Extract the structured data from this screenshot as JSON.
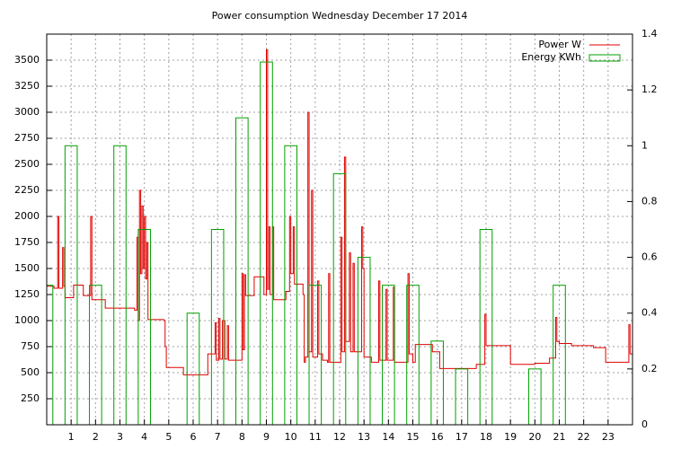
{
  "chart_data": {
    "type": "step-line-bar",
    "title": "Power consumption Wednesday December 17 2014",
    "grid": true,
    "legend": "upper right",
    "xlim": [
      0,
      24
    ],
    "xticks": [
      1,
      2,
      3,
      4,
      5,
      6,
      7,
      8,
      9,
      10,
      11,
      12,
      13,
      14,
      15,
      16,
      17,
      18,
      19,
      20,
      21,
      22,
      23
    ],
    "ylim": [
      0,
      3750
    ],
    "yticks": [
      250,
      500,
      750,
      1000,
      1250,
      1500,
      1750,
      2000,
      2250,
      2500,
      2750,
      3000,
      3250,
      3500
    ],
    "y2lim": [
      0,
      1.4
    ],
    "y2ticks": [
      0,
      0.2,
      0.4,
      0.6,
      0.8,
      1,
      1.2,
      1.4
    ],
    "series": [
      {
        "name": "Power W",
        "color": "#e00000",
        "kind": "step",
        "x": [
          0,
          0.3,
          0.45,
          0.5,
          0.65,
          0.7,
          0.75,
          1,
          1.1,
          1.5,
          1.8,
          1.85,
          2.4,
          3.6,
          3.7,
          3.75,
          3.8,
          3.85,
          3.9,
          3.95,
          4.0,
          4.05,
          4.1,
          4.15,
          4.8,
          4.85,
          4.9,
          5.5,
          5.6,
          6.5,
          6.6,
          6.8,
          6.9,
          6.95,
          7.05,
          7.1,
          7.2,
          7.3,
          7.4,
          7.45,
          7.9,
          8.0,
          8.05,
          8.1,
          8.15,
          8.5,
          8.9,
          9.0,
          9.05,
          9.1,
          9.15,
          9.25,
          9.3,
          9.8,
          9.95,
          10.0,
          10.1,
          10.15,
          10.5,
          10.55,
          10.6,
          10.7,
          10.75,
          10.85,
          10.9,
          11.1,
          11.15,
          11.3,
          11.5,
          11.55,
          11.6,
          12.0,
          12.05,
          12.1,
          12.2,
          12.25,
          12.4,
          12.45,
          12.55,
          12.6,
          12.9,
          12.95,
          13.0,
          13.3,
          13.6,
          13.65,
          13.9,
          13.95,
          14.2,
          14.25,
          14.8,
          14.85,
          15.0,
          15.1,
          15.8,
          16.1,
          17.6,
          17.95,
          18.0,
          19.0,
          20.0,
          20.6,
          20.85,
          20.9,
          21.0,
          21.5,
          22.4,
          22.9,
          23.85,
          23.9,
          24
        ],
        "values": [
          1330,
          1310,
          2000,
          1310,
          1700,
          1330,
          1220,
          1220,
          1340,
          1240,
          2000,
          1200,
          1120,
          1100,
          1800,
          1000,
          2250,
          1450,
          2100,
          1500,
          2000,
          1400,
          1750,
          1010,
          1000,
          750,
          550,
          550,
          480,
          480,
          680,
          680,
          980,
          620,
          1020,
          630,
          1000,
          630,
          950,
          620,
          620,
          1450,
          720,
          1440,
          1240,
          1420,
          1250,
          3600,
          1300,
          1900,
          1250,
          1900,
          1200,
          1280,
          2000,
          1450,
          1900,
          1350,
          1250,
          600,
          650,
          3000,
          700,
          2250,
          650,
          1380,
          680,
          620,
          600,
          1450,
          600,
          600,
          1800,
          700,
          2570,
          800,
          1650,
          700,
          1550,
          700,
          1900,
          1500,
          650,
          600,
          1380,
          620,
          1300,
          620,
          1320,
          600,
          1450,
          680,
          600,
          770,
          700,
          540,
          580,
          1060,
          760,
          580,
          590,
          640,
          1030,
          800,
          780,
          760,
          740,
          600,
          960,
          680,
          680
        ]
      },
      {
        "name": "Energy KWh",
        "color": "#00a000",
        "kind": "bar",
        "axis": "y2",
        "x": [
          0,
          1,
          2,
          3,
          4,
          5,
          6,
          7,
          8,
          9,
          10,
          11,
          12,
          13,
          14,
          15,
          16,
          17,
          18,
          19,
          20,
          21,
          22,
          23
        ],
        "values": [
          0.5,
          1,
          0.5,
          1,
          0.7,
          0,
          0.4,
          0.7,
          1.1,
          1.3,
          1,
          0.5,
          0.9,
          0.6,
          0.5,
          0.5,
          0.3,
          0.2,
          0.7,
          0,
          0.2,
          0.5,
          0,
          0
        ]
      }
    ]
  }
}
